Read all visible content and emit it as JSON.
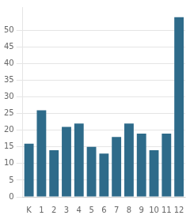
{
  "chart_data": {
    "type": "bar",
    "categories": [
      "K",
      "1",
      "2",
      "3",
      "4",
      "5",
      "6",
      "7",
      "8",
      "9",
      "10",
      "11",
      "12"
    ],
    "values": [
      16,
      26,
      14,
      21,
      22,
      15,
      13,
      18,
      22,
      19,
      14,
      19,
      54
    ],
    "color": "#2e6b8a",
    "ylim": [
      0,
      57
    ],
    "yticks": [
      0,
      5,
      10,
      15,
      20,
      25,
      30,
      35,
      40,
      45,
      50
    ],
    "grid": true
  }
}
